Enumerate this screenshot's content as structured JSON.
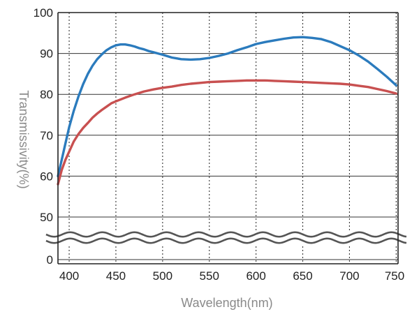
{
  "chart_data": {
    "type": "line",
    "title": "",
    "xlabel": "Wavelength(nm)",
    "ylabel": "Transmissivity(%)",
    "xlim": [
      388,
      752
    ],
    "ylim_upper": [
      50,
      100
    ],
    "axis_break": "between 0 and 50",
    "x_ticks": [
      400,
      450,
      500,
      550,
      600,
      650,
      700,
      750
    ],
    "y_ticks": [
      100,
      90,
      80,
      70,
      60,
      50,
      0
    ],
    "grid": {
      "vertical": "dotted",
      "horizontal": "solid"
    },
    "series": [
      {
        "color": "#2b7bbd",
        "x": [
          388,
          392,
          396,
          400,
          405,
          410,
          415,
          420,
          425,
          430,
          435,
          440,
          445,
          450,
          455,
          460,
          465,
          470,
          475,
          480,
          485,
          490,
          495,
          500,
          510,
          520,
          530,
          540,
          550,
          560,
          570,
          580,
          590,
          600,
          610,
          620,
          630,
          640,
          650,
          660,
          670,
          680,
          690,
          700,
          710,
          720,
          730,
          740,
          750
        ],
        "y": [
          60,
          64,
          68,
          72,
          76,
          79.5,
          82.5,
          85,
          87,
          88.6,
          89.8,
          90.8,
          91.5,
          92,
          92.2,
          92.2,
          92,
          91.7,
          91.3,
          91,
          90.6,
          90.3,
          90,
          89.7,
          89,
          88.6,
          88.5,
          88.6,
          88.9,
          89.4,
          90,
          90.8,
          91.5,
          92.3,
          92.8,
          93.2,
          93.6,
          93.9,
          94,
          93.8,
          93.5,
          92.8,
          91.8,
          90.8,
          89.5,
          88,
          86.2,
          84.3,
          82.2
        ]
      },
      {
        "color": "#c85050",
        "x": [
          388,
          392,
          396,
          400,
          405,
          410,
          415,
          420,
          425,
          430,
          435,
          440,
          445,
          450,
          460,
          470,
          480,
          490,
          500,
          510,
          520,
          530,
          540,
          550,
          560,
          570,
          580,
          590,
          600,
          610,
          620,
          630,
          640,
          650,
          660,
          670,
          680,
          690,
          700,
          710,
          720,
          730,
          740,
          750
        ],
        "y": [
          58,
          61.5,
          64,
          66,
          68.5,
          70.3,
          71.8,
          73,
          74.3,
          75.3,
          76.2,
          77,
          77.8,
          78.3,
          79.2,
          80,
          80.7,
          81.2,
          81.6,
          81.9,
          82.3,
          82.6,
          82.8,
          83,
          83.1,
          83.2,
          83.3,
          83.4,
          83.4,
          83.4,
          83.3,
          83.2,
          83.1,
          83,
          82.9,
          82.8,
          82.7,
          82.6,
          82.4,
          82.1,
          81.8,
          81.3,
          80.8,
          80.2
        ]
      }
    ]
  }
}
